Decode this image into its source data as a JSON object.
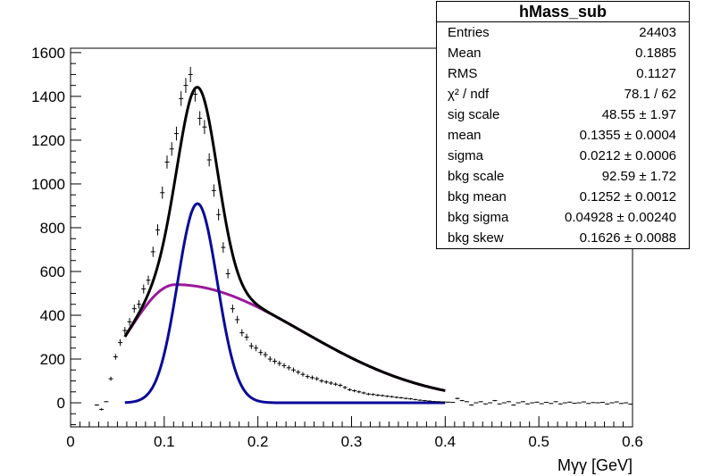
{
  "stats_box": {
    "title": "hMass_sub",
    "rows": [
      {
        "label": "Entries",
        "value": "24403"
      },
      {
        "label": "Mean",
        "value": "0.1885"
      },
      {
        "label": "RMS",
        "value": "0.1127"
      },
      {
        "label": "χ² / ndf",
        "value": "78.1 / 62"
      },
      {
        "label": "sig scale",
        "value": "48.55 ± 1.97"
      },
      {
        "label": "mean",
        "value": "0.1355 ± 0.0004"
      },
      {
        "label": "sigma",
        "value": "0.0212 ± 0.0006"
      },
      {
        "label": "bkg scale",
        "value": "92.59 ± 1.72"
      },
      {
        "label": "bkg mean",
        "value": "0.1252 ± 0.0012"
      },
      {
        "label": "bkg sigma",
        "value": "0.04928 ± 0.00240"
      },
      {
        "label": "bkg skew",
        "value": "0.1626 ± 0.0088"
      }
    ]
  },
  "chart_data": {
    "type": "scatter",
    "title": "",
    "xlabel": "Mγγ [GeV]",
    "ylabel": "",
    "xlim": [
      0,
      0.6
    ],
    "ylim": [
      -110,
      1620
    ],
    "x_ticks": [
      0,
      0.1,
      0.2,
      0.3,
      0.4,
      0.5,
      0.6
    ],
    "x_tick_labels": [
      "0",
      "0.1",
      "0.2",
      "0.3",
      "0.4",
      "0.5",
      "0.6"
    ],
    "y_ticks": [
      0,
      200,
      400,
      600,
      800,
      1000,
      1200,
      1400,
      1600
    ],
    "y_tick_labels": [
      "0",
      "200",
      "400",
      "600",
      "800",
      "1000",
      "1200",
      "1400",
      "1600"
    ],
    "grid": false,
    "series": [
      {
        "kind": "histogram_points",
        "color": "#000000",
        "x": [
          0.028,
          0.033,
          0.038,
          0.043,
          0.048,
          0.053,
          0.058,
          0.063,
          0.068,
          0.073,
          0.078,
          0.083,
          0.088,
          0.093,
          0.098,
          0.103,
          0.108,
          0.113,
          0.118,
          0.123,
          0.128,
          0.133,
          0.138,
          0.143,
          0.148,
          0.153,
          0.158,
          0.163,
          0.168,
          0.173,
          0.178,
          0.183,
          0.188,
          0.193,
          0.198,
          0.203,
          0.208,
          0.213,
          0.218,
          0.223,
          0.228,
          0.233,
          0.238,
          0.243,
          0.248,
          0.253,
          0.258,
          0.263,
          0.268,
          0.273,
          0.278,
          0.283,
          0.288,
          0.293,
          0.298,
          0.303,
          0.308,
          0.313,
          0.318,
          0.323,
          0.328,
          0.333,
          0.338,
          0.343,
          0.348,
          0.353,
          0.358,
          0.363,
          0.368,
          0.373,
          0.378,
          0.383,
          0.388,
          0.393,
          0.398,
          0.403,
          0.408,
          0.413,
          0.418,
          0.423,
          0.428,
          0.433,
          0.438,
          0.443,
          0.448,
          0.453,
          0.458,
          0.463,
          0.468,
          0.473,
          0.478,
          0.483,
          0.488,
          0.493,
          0.498,
          0.503,
          0.508,
          0.513,
          0.518,
          0.523,
          0.528,
          0.533,
          0.538,
          0.543,
          0.548,
          0.553,
          0.558,
          0.563,
          0.568,
          0.573,
          0.578,
          0.583,
          0.588,
          0.593,
          0.598
        ],
        "y": [
          -10,
          -30,
          5,
          110,
          210,
          275,
          330,
          370,
          430,
          450,
          520,
          560,
          690,
          790,
          960,
          1100,
          1160,
          1230,
          1390,
          1450,
          1500,
          1410,
          1300,
          1260,
          1110,
          970,
          860,
          710,
          590,
          430,
          380,
          320,
          300,
          260,
          250,
          230,
          220,
          200,
          190,
          180,
          170,
          160,
          150,
          140,
          130,
          120,
          115,
          110,
          100,
          95,
          90,
          85,
          80,
          70,
          60,
          55,
          50,
          45,
          40,
          38,
          35,
          33,
          30,
          28,
          25,
          23,
          20,
          18,
          15,
          12,
          10,
          8,
          6,
          5,
          4,
          3,
          2,
          20,
          10,
          5,
          -10,
          0,
          5,
          -5,
          0,
          10,
          -5,
          0,
          5,
          -10,
          0,
          5,
          -5,
          0,
          3,
          -4,
          2,
          -3,
          5,
          -5,
          0,
          3,
          -2,
          0,
          4,
          -3,
          1,
          0,
          2,
          -5,
          0,
          4,
          -3,
          0,
          -6
        ]
      },
      {
        "name": "",
        "kind": "fit_total",
        "color": "#000000",
        "x_range": [
          0.058,
          0.4
        ],
        "curve": "signal + background"
      },
      {
        "name": "",
        "kind": "fit_signal",
        "color": "#0a0a9a",
        "x_range": [
          0.058,
          0.4
        ],
        "amplitude": 910,
        "mean": 0.1355,
        "sigma": 0.0212
      },
      {
        "name": "",
        "kind": "fit_background",
        "color": "#9a1a9a",
        "x_range": [
          0.058,
          0.4
        ],
        "amplitude": 540,
        "mode": 0.112,
        "sigma_left": 0.05,
        "sigma_right": 0.135
      }
    ]
  }
}
